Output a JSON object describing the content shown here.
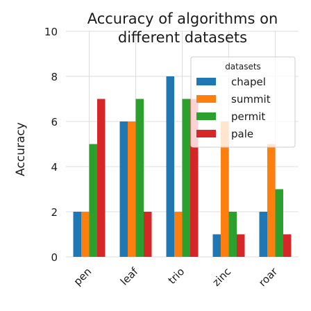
{
  "chart_data": {
    "type": "bar",
    "title": "Accuracy of algorithms on different datasets",
    "title_lines": [
      "Accuracy of algorithms on",
      "different datasets"
    ],
    "xlabel": "",
    "ylabel": "Accuracy",
    "categories": [
      "pen",
      "leaf",
      "trio",
      "zinc",
      "roar"
    ],
    "ylim": [
      0,
      10
    ],
    "yticks": [
      0,
      2,
      4,
      6,
      8,
      10
    ],
    "grid": true,
    "legend_title": "datasets",
    "legend_position": "top-right",
    "series": [
      {
        "name": "chapel",
        "color": "#1f77b4",
        "values": [
          2,
          6,
          8,
          1,
          2
        ]
      },
      {
        "name": "summit",
        "color": "#ff7f0e",
        "values": [
          2,
          6,
          2,
          6,
          5
        ]
      },
      {
        "name": "permit",
        "color": "#2ca02c",
        "values": [
          5,
          7,
          7,
          2,
          3
        ]
      },
      {
        "name": "pale",
        "color": "#d62728",
        "values": [
          7,
          2,
          7,
          1,
          1
        ]
      }
    ]
  }
}
